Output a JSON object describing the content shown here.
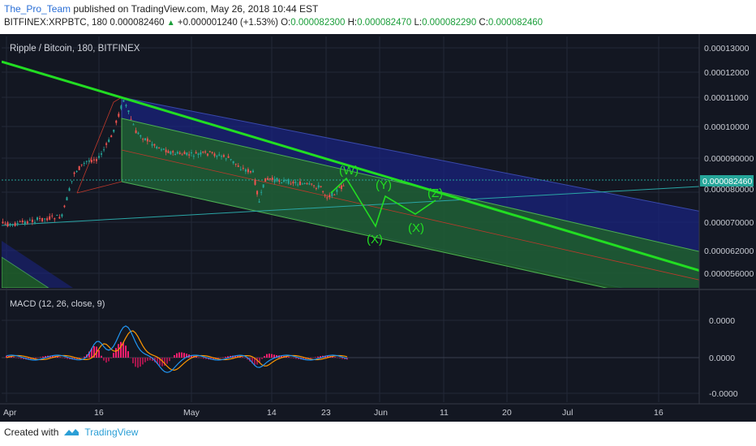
{
  "header": {
    "author": "The_Pro_Team",
    "published_text": "published on TradingView.com, May 26, 2018 10:44 EST",
    "symbol": "BITFINEX:XRPBTC, 180",
    "price": "0.000082460",
    "change": "+0.000001240 (+1.53%)",
    "o_label": "O:",
    "o_value": "0.000082300",
    "h_label": "H:",
    "h_value": "0.000082470",
    "l_label": "L:",
    "l_value": "0.000082290",
    "c_label": "C:",
    "c_value": "0.000082460"
  },
  "chart_title": "Ripple / Bitcoin, 180, BITFINEX",
  "macd_label": "MACD (12, 26, close, 9)",
  "footer": {
    "created_with": "Created with",
    "brand": "TradingView"
  },
  "colors": {
    "background": "#131722",
    "trendline": "#22dd22",
    "channel_green": "#1f5f2a",
    "channel_blue": "#1a237e",
    "macd_line": "#2196f3",
    "signal_line": "#ff9800",
    "histogram": "#ff1e6e"
  },
  "chart_data": {
    "type": "line",
    "title": "Ripple / Bitcoin, 180, BITFINEX",
    "price_axis": [
      "0.00013000",
      "0.00012000",
      "0.00011000",
      "0.00010000",
      "0.000090000",
      "0.000080000",
      "0.000070000",
      "0.000062000",
      "0.000056000"
    ],
    "macd_axis": [
      "0.0000",
      "0.0000",
      "-0.0000"
    ],
    "x_ticks": [
      "Apr",
      "16",
      "May",
      "14",
      "23",
      "Jun",
      "11",
      "20",
      "Jul",
      "16"
    ],
    "current_price": 8.246e-05,
    "series": [
      {
        "values": [
          [
            "Mar 29",
            7.08e-05
          ],
          [
            "Apr 2",
            7e-05
          ],
          [
            "Apr 6",
            7.15e-05
          ],
          [
            "Apr 10",
            7.25e-05
          ],
          [
            "Apr 12",
            8.6e-05
          ],
          [
            "Apr 14",
            8.95e-05
          ],
          [
            "Apr 16",
            9.05e-05
          ],
          [
            "Apr 18",
            9.7e-05
          ],
          [
            "Apr 20",
            0.0001085
          ],
          [
            "Apr 22",
            9.85e-05
          ],
          [
            "Apr 25",
            9.45e-05
          ],
          [
            "Apr 28",
            9.2e-05
          ],
          [
            "May 1",
            9.15e-05
          ],
          [
            "May 4",
            9.2e-05
          ],
          [
            "May 7",
            9.05e-05
          ],
          [
            "May 9",
            8.75e-05
          ],
          [
            "May 11",
            8.6e-05
          ],
          [
            "May 12",
            7.7e-05
          ],
          [
            "May 13",
            8.4e-05
          ],
          [
            "May 16",
            8.35e-05
          ],
          [
            "May 19",
            8.25e-05
          ],
          [
            "May 22",
            8.15e-05
          ],
          [
            "May 23",
            7.85e-05
          ],
          [
            "May 25",
            8.1e-05
          ],
          [
            "May 26",
            8.25e-05
          ]
        ]
      }
    ],
    "annotations": [
      "(W)",
      "(X)",
      "(Y)",
      "(X)",
      "(Z)"
    ],
    "grid": true
  }
}
